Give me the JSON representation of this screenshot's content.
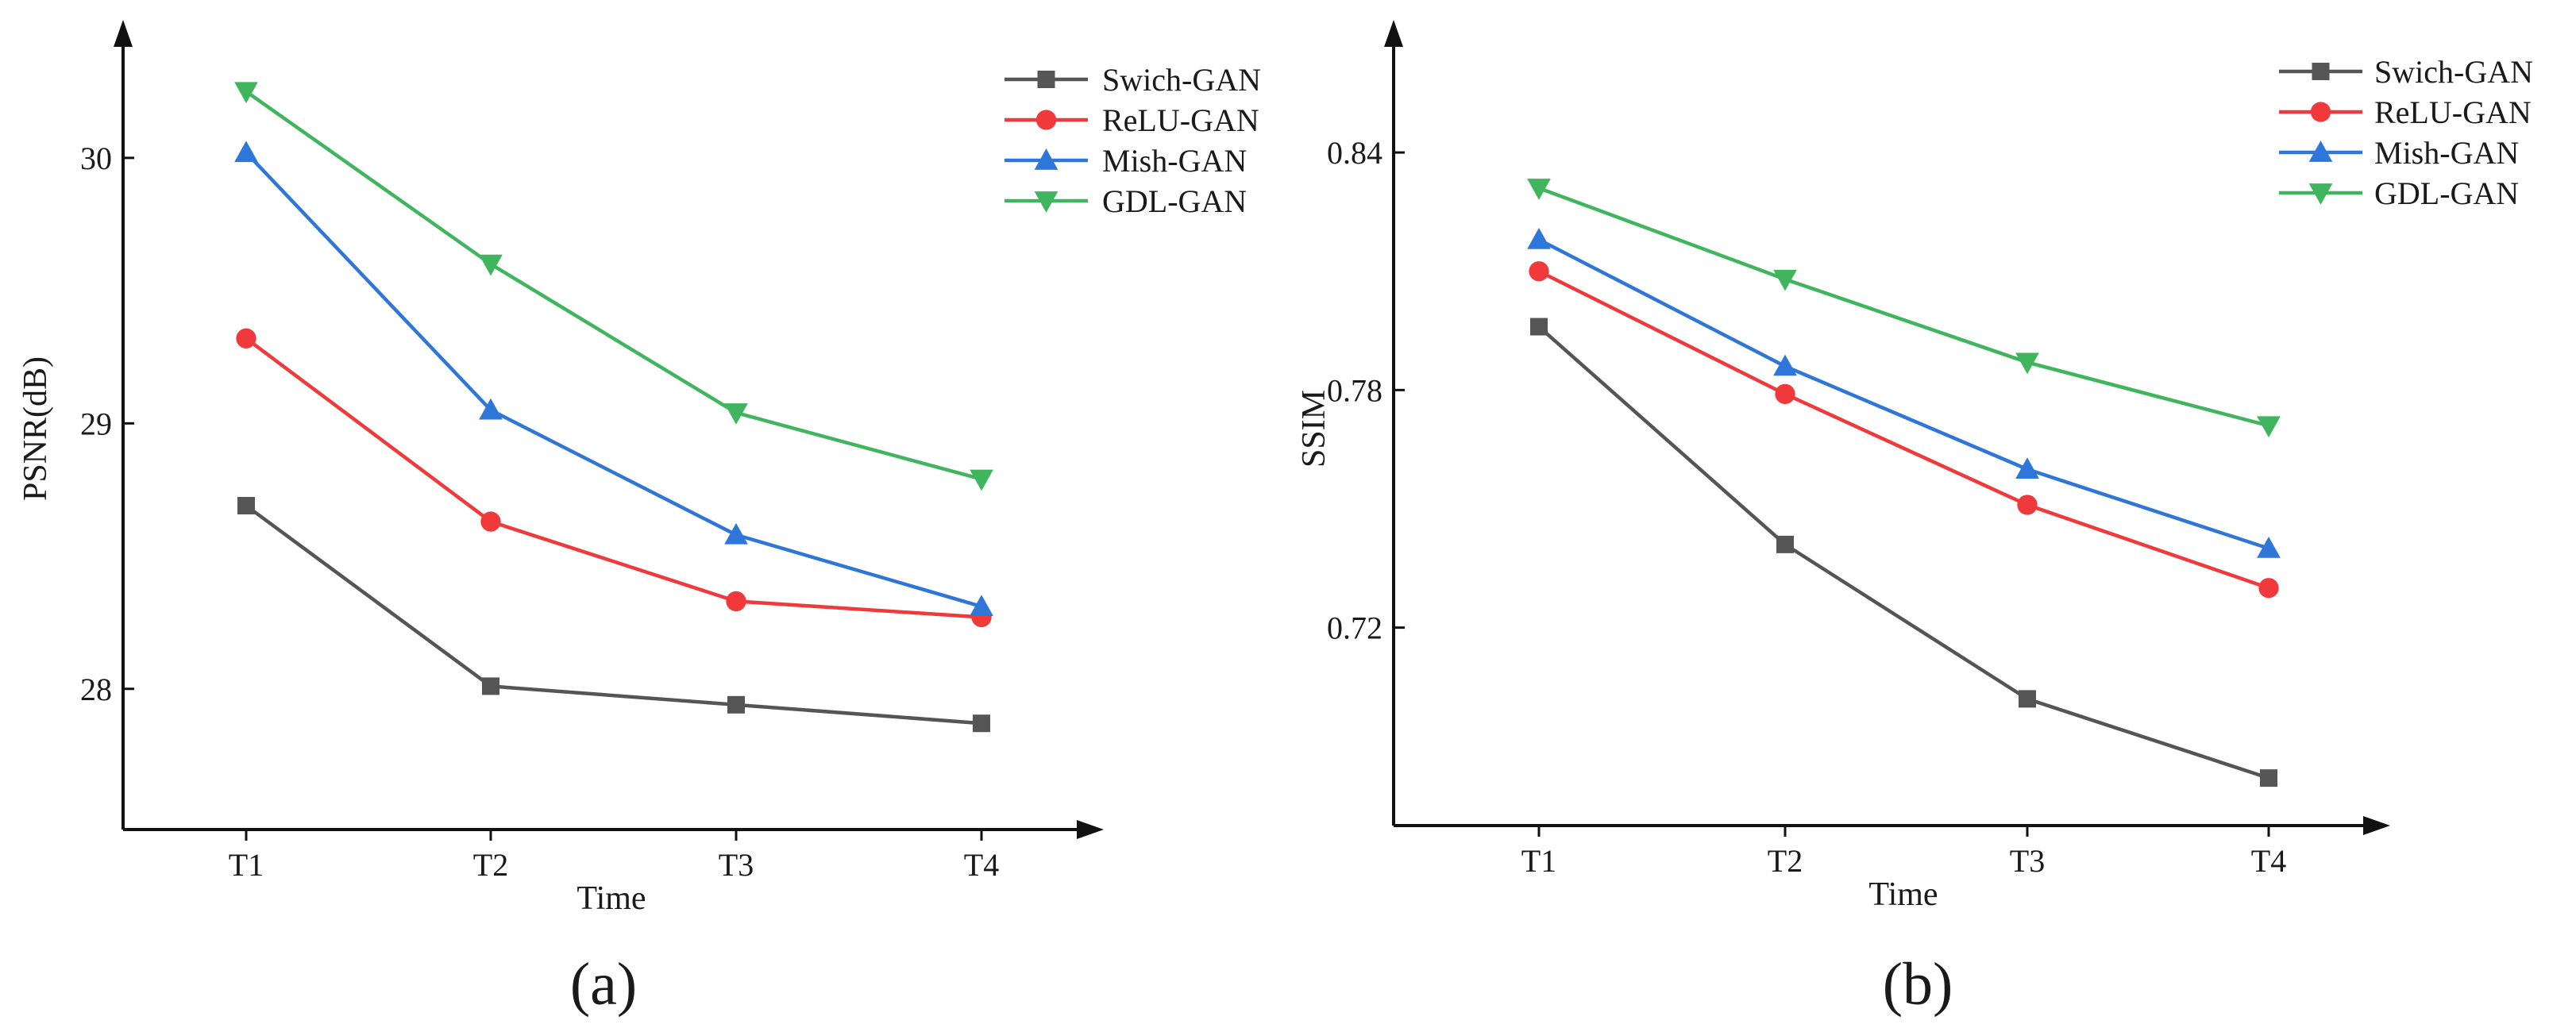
{
  "chart_data": [
    {
      "type": "line",
      "caption": "(a)",
      "categories": [
        "T1",
        "T2",
        "T3",
        "T4"
      ],
      "xlabel": "Time",
      "ylabel": "PSNR(dB)",
      "ylim": [
        27.47,
        30.52
      ],
      "yticks": [
        28,
        29,
        30
      ],
      "legend_position": "top-right",
      "grid": false,
      "series": [
        {
          "name": "Swich-GAN",
          "marker": "square",
          "color": "#555555",
          "values": [
            28.69,
            28.01,
            27.94,
            27.87
          ]
        },
        {
          "name": "ReLU-GAN",
          "marker": "circle",
          "color": "#f0393b",
          "values": [
            29.32,
            28.63,
            28.33,
            28.27
          ]
        },
        {
          "name": "Mish-GAN",
          "marker": "triangle-up",
          "color": "#2e76d8",
          "values": [
            30.02,
            29.05,
            28.58,
            28.31
          ]
        },
        {
          "name": "GDL-GAN",
          "marker": "triangle-down",
          "color": "#3fb55d",
          "values": [
            30.25,
            29.6,
            29.04,
            28.79
          ]
        }
      ]
    },
    {
      "type": "line",
      "caption": "(b)",
      "categories": [
        "T1",
        "T2",
        "T3",
        "T4"
      ],
      "xlabel": "Time",
      "ylabel": "SSIM",
      "ylim": [
        0.67,
        0.8735
      ],
      "yticks": [
        "0.72",
        "0.78",
        "0.84"
      ],
      "legend_position": "top-right",
      "grid": false,
      "series": [
        {
          "name": "Swich-GAN",
          "marker": "square",
          "color": "#555555",
          "values": [
            0.796,
            0.741,
            0.702,
            0.682
          ]
        },
        {
          "name": "ReLU-GAN",
          "marker": "circle",
          "color": "#f0393b",
          "values": [
            0.81,
            0.779,
            0.751,
            0.73
          ]
        },
        {
          "name": "Mish-GAN",
          "marker": "triangle-up",
          "color": "#2e76d8",
          "values": [
            0.818,
            0.786,
            0.76,
            0.74
          ]
        },
        {
          "name": "GDL-GAN",
          "marker": "triangle-down",
          "color": "#3fb55d",
          "values": [
            0.831,
            0.808,
            0.787,
            0.771
          ]
        }
      ]
    }
  ]
}
